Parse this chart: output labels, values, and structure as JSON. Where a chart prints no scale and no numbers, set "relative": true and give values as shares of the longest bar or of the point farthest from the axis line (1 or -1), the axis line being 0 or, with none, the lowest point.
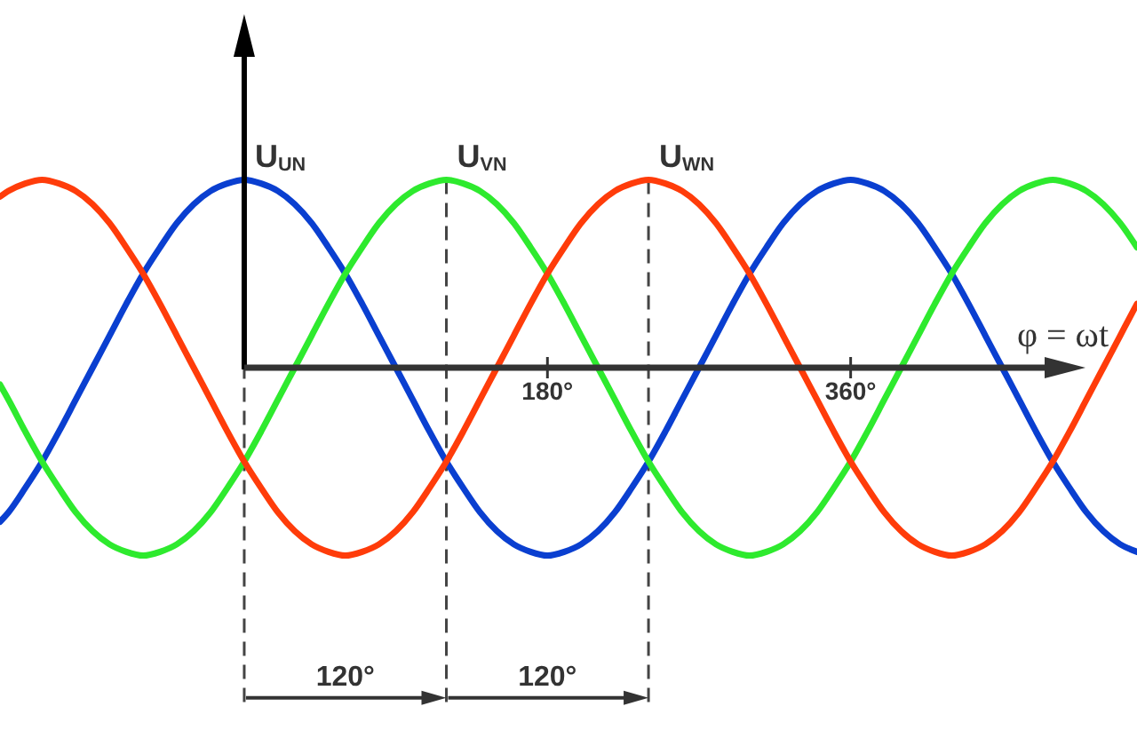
{
  "chart_data": {
    "type": "line",
    "relative": true,
    "xlabel": "φ = ωt",
    "xlim": [
      -145,
      530
    ],
    "xticks": [
      {
        "value": 180,
        "label": "180°"
      },
      {
        "value": 360,
        "label": "360°"
      }
    ],
    "x": [
      -145,
      -140,
      -130,
      -120,
      -110,
      -100,
      -90,
      -80,
      -70,
      -60,
      -50,
      -40,
      -30,
      -20,
      -10,
      0,
      10,
      20,
      30,
      40,
      50,
      60,
      70,
      80,
      90,
      100,
      110,
      120,
      130,
      140,
      150,
      160,
      170,
      180,
      190,
      200,
      210,
      220,
      230,
      240,
      250,
      260,
      270,
      280,
      290,
      300,
      310,
      320,
      330,
      340,
      350,
      360,
      370,
      380,
      390,
      400,
      410,
      420,
      430,
      440,
      450,
      460,
      470,
      480,
      490,
      500,
      510,
      520,
      530
    ],
    "series": [
      {
        "name": "U$_{UN}$",
        "color": "#0a3fd0",
        "values": [
          -0.82,
          -0.77,
          -0.64,
          -0.5,
          -0.34,
          -0.17,
          0,
          0.17,
          0.34,
          0.5,
          0.64,
          0.77,
          0.87,
          0.94,
          0.98,
          1,
          0.98,
          0.94,
          0.87,
          0.77,
          0.64,
          0.5,
          0.34,
          0.17,
          0,
          -0.17,
          -0.34,
          -0.5,
          -0.64,
          -0.77,
          -0.87,
          -0.94,
          -0.98,
          -1,
          -0.98,
          -0.94,
          -0.87,
          -0.77,
          -0.64,
          -0.5,
          -0.34,
          -0.17,
          0,
          0.17,
          0.34,
          0.5,
          0.64,
          0.77,
          0.87,
          0.94,
          0.98,
          1,
          0.98,
          0.94,
          0.87,
          0.77,
          0.64,
          0.5,
          0.34,
          0.17,
          0,
          -0.17,
          -0.34,
          -0.5,
          -0.64,
          -0.77,
          -0.87,
          -0.94,
          -0.98
        ]
      },
      {
        "name": "U$_{VN}$",
        "color": "#2eea2e",
        "values": [
          -0.09,
          -0.17,
          -0.34,
          -0.5,
          -0.64,
          -0.77,
          -0.87,
          -0.94,
          -0.98,
          -1,
          -0.98,
          -0.94,
          -0.87,
          -0.77,
          -0.64,
          -0.5,
          -0.34,
          -0.17,
          0,
          0.17,
          0.34,
          0.5,
          0.64,
          0.77,
          0.87,
          0.94,
          0.98,
          1,
          0.98,
          0.94,
          0.87,
          0.77,
          0.64,
          0.5,
          0.34,
          0.17,
          0,
          -0.17,
          -0.34,
          -0.5,
          -0.64,
          -0.77,
          -0.87,
          -0.94,
          -0.98,
          -1,
          -0.98,
          -0.94,
          -0.87,
          -0.77,
          -0.64,
          -0.5,
          -0.34,
          -0.17,
          0,
          0.17,
          0.34,
          0.5,
          0.64,
          0.77,
          0.87,
          0.94,
          0.98,
          1,
          0.98,
          0.94,
          0.87,
          0.77,
          0.64
        ]
      },
      {
        "name": "U$_{WN}$",
        "color": "#ff3c0a",
        "values": [
          0.91,
          0.94,
          0.98,
          1,
          0.98,
          0.94,
          0.87,
          0.77,
          0.64,
          0.5,
          0.34,
          0.17,
          0,
          -0.17,
          -0.34,
          -0.5,
          -0.64,
          -0.77,
          -0.87,
          -0.94,
          -0.98,
          -1,
          -0.98,
          -0.94,
          -0.87,
          -0.77,
          -0.64,
          -0.5,
          -0.34,
          -0.17,
          0,
          0.17,
          0.34,
          0.5,
          0.64,
          0.77,
          0.87,
          0.94,
          0.98,
          1,
          0.98,
          0.94,
          0.87,
          0.77,
          0.64,
          0.5,
          0.34,
          0.17,
          0,
          -0.17,
          -0.34,
          -0.5,
          -0.64,
          -0.77,
          -0.87,
          -0.94,
          -0.98,
          -1,
          -0.98,
          -0.94,
          -0.87,
          -0.77,
          -0.64,
          -0.5,
          -0.34,
          -0.17,
          0,
          0.17,
          0.34
        ]
      }
    ],
    "ref_lines": [
      {
        "axis": "x",
        "value": 0,
        "color": "#444444",
        "line_style": "dashed"
      },
      {
        "axis": "x",
        "value": 120,
        "color": "#444444",
        "line_style": "dashed"
      },
      {
        "axis": "x",
        "value": 240,
        "color": "#444444",
        "line_style": "dashed"
      }
    ],
    "annotations": [
      "120°",
      "120°"
    ]
  }
}
